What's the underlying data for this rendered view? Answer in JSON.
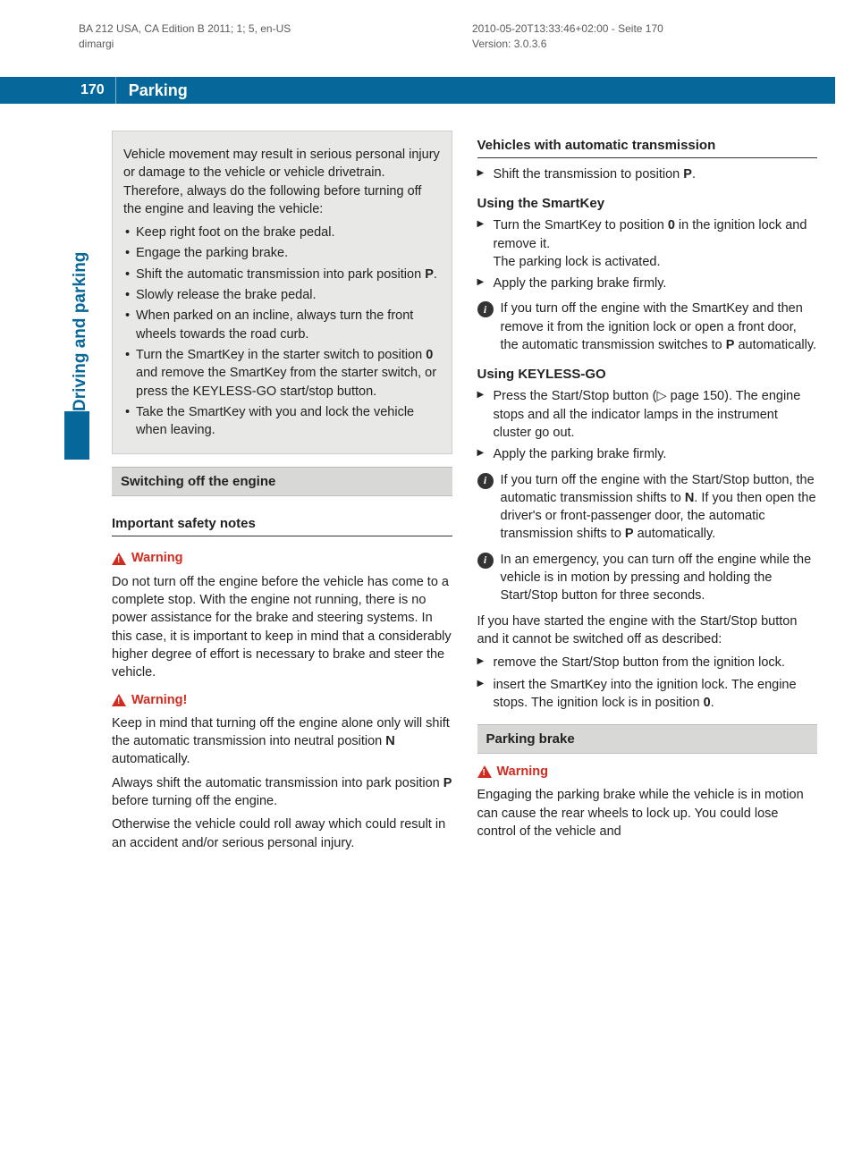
{
  "meta": {
    "leftLine1": "BA 212 USA, CA Edition B 2011; 1; 5, en-US",
    "leftLine2": "dimargi",
    "rightLine1": "2010-05-20T13:33:46+02:00 - Seite 170",
    "rightLine2": "Version: 3.0.3.6"
  },
  "banner": {
    "pageNumber": "170",
    "title": "Parking"
  },
  "sideLabel": "Driving and parking",
  "colors": {
    "brand": "#06689a",
    "warn": "#d12b1f",
    "grayBox": "#e8e9e7",
    "grayHeader": "#d8d9d7"
  },
  "left": {
    "introBox": {
      "lead": "Vehicle movement may result in serious personal injury or damage to the vehicle or vehicle drivetrain. Therefore, always do the following before turning off the engine and leaving the vehicle:",
      "bullets": [
        "Keep right foot on the brake pedal.",
        "Engage the parking brake.",
        "Shift the automatic transmission into park position P.",
        "Slowly release the brake pedal.",
        "When parked on an incline, always turn the front wheels towards the road curb.",
        "Turn the SmartKey in the starter switch to position 0 and remove the SmartKey from the starter switch, or press the KEYLESS-GO start/stop button.",
        "Take the SmartKey with you and lock the vehicle when leaving."
      ]
    },
    "switchHeader": "Switching off the engine",
    "safetyNotes": "Important safety notes",
    "warn1Title": "Warning",
    "warn1Body": "Do not turn off the engine before the vehicle has come to a complete stop. With the engine not running, there is no power assistance for the brake and steering systems. In this case, it is important to keep in mind that a considerably higher degree of effort is necessary to brake and steer the vehicle.",
    "warn2Title": "Warning!",
    "warn2P1": "Keep in mind that turning off the engine alone only will shift the automatic transmission into neutral position N automatically.",
    "warn2P2": "Always shift the automatic transmission into park position P before turning off the engine.",
    "warn2P3": "Otherwise the vehicle could roll away which could result in an accident and/or serious personal injury."
  },
  "right": {
    "autoHeader": "Vehicles with automatic transmission",
    "autoStep": "Shift the transmission to position P.",
    "smartKeyHeader": "Using the SmartKey",
    "skStep1": "Turn the SmartKey to position 0  in the ignition lock and remove it. The parking lock is activated.",
    "skStep2": "Apply the parking brake firmly.",
    "skInfo": "If you turn off the engine with the SmartKey and then remove it from the ignition lock or open a front door, the automatic transmission switches to P automatically.",
    "keylessHeader": "Using KEYLESS-GO",
    "klStep1": "Press the Start/Stop button (▷ page 150). The engine stops and all the indicator lamps in the instrument cluster go out.",
    "klStep2": "Apply the parking brake firmly.",
    "klInfo1": "If you turn off the engine with the Start/Stop button, the automatic transmission shifts to N. If you then open the driver's or front-passenger door, the automatic transmission shifts to P automatically.",
    "klInfo2": "In an emergency, you can turn off the engine while the vehicle is in motion by pressing and holding the Start/Stop button for three seconds.",
    "klNote": "If you have started the engine with the Start/Stop button and it cannot be switched off as described:",
    "klFix1": "remove the Start/Stop button from the ignition lock.",
    "klFix2": "insert the SmartKey into the ignition lock. The engine stops. The ignition lock is in position 0.",
    "parkBrakeHeader": "Parking brake",
    "pbWarnTitle": "Warning",
    "pbWarnBody": "Engaging the parking brake while the vehicle is in motion can cause the rear wheels to lock up. You could lose control of the vehicle and"
  }
}
